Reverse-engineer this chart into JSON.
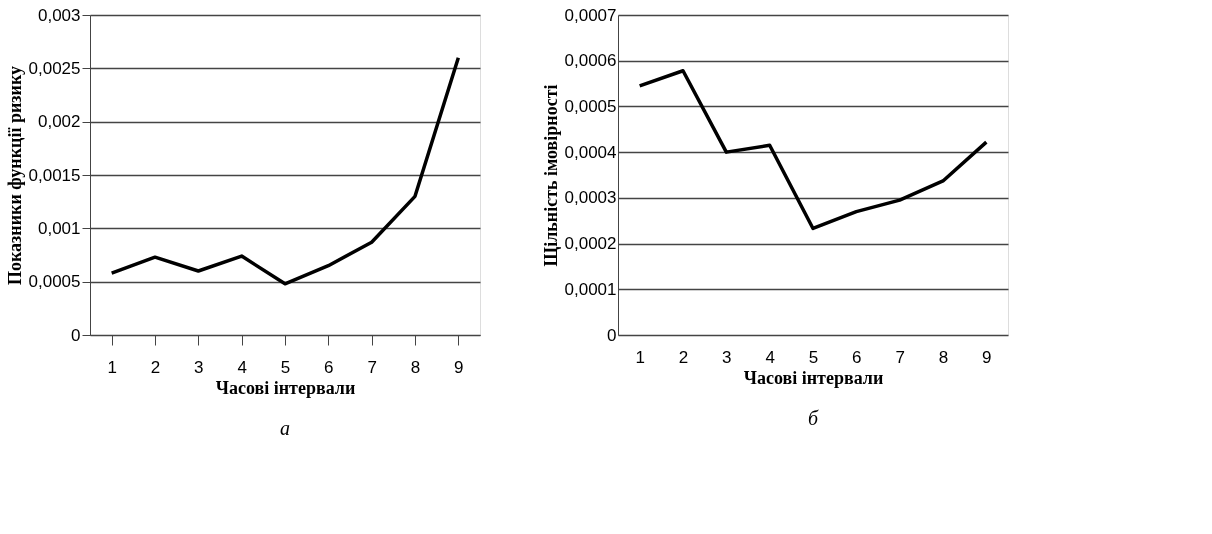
{
  "chart_data": [
    {
      "type": "line",
      "categories": [
        "1",
        "2",
        "3",
        "4",
        "5",
        "6",
        "7",
        "8",
        "9"
      ],
      "xlabel": "Часові інтервали",
      "ylabel": "Показники функції ризику",
      "annotations": [
        "а"
      ],
      "series": [
        {
          "color": "#000000",
          "values": [
            0.00058,
            0.00073,
            0.0006,
            0.00074,
            0.00048,
            0.00065,
            0.00087,
            0.0013,
            0.0026
          ]
        }
      ],
      "ylim": [
        0,
        0.003
      ],
      "yticks": [
        0,
        {
          "value": 0.0005,
          "label": "0,0005"
        },
        {
          "value": 0.001,
          "label": "0,001"
        },
        {
          "value": 0.0015,
          "label": "0,0015"
        },
        {
          "value": 0.002,
          "label": "0,002"
        },
        {
          "value": 0.0025,
          "label": "0,0025"
        },
        {
          "value": 0.003,
          "label": "0,003"
        }
      ],
      "grid": "y",
      "marker": "none",
      "line_style": "solid"
    },
    {
      "type": "line",
      "categories": [
        "1",
        "2",
        "3",
        "4",
        "5",
        "6",
        "7",
        "8",
        "9"
      ],
      "xlabel": "Часові інтервали",
      "ylabel": "Щільність імовірності",
      "annotations": [
        "б"
      ],
      "series": [
        {
          "color": "#000000",
          "values": [
            0.000545,
            0.000578,
            0.0004,
            0.000415,
            0.000233,
            0.00027,
            0.000295,
            0.000337,
            0.000422
          ]
        }
      ],
      "ylim": [
        0,
        0.0007
      ],
      "yticks": [
        0,
        {
          "value": 0.0001,
          "label": "0,0001"
        },
        {
          "value": 0.0002,
          "label": "0,0002"
        },
        {
          "value": 0.0003,
          "label": "0,0003"
        },
        {
          "value": 0.0004,
          "label": "0,0004"
        },
        {
          "value": 0.0005,
          "label": "0,0005"
        },
        {
          "value": 0.0006,
          "label": "0,0006"
        },
        {
          "value": 0.0007,
          "label": "0,0007"
        }
      ],
      "grid": "y",
      "marker": "none",
      "line_style": "solid"
    }
  ]
}
